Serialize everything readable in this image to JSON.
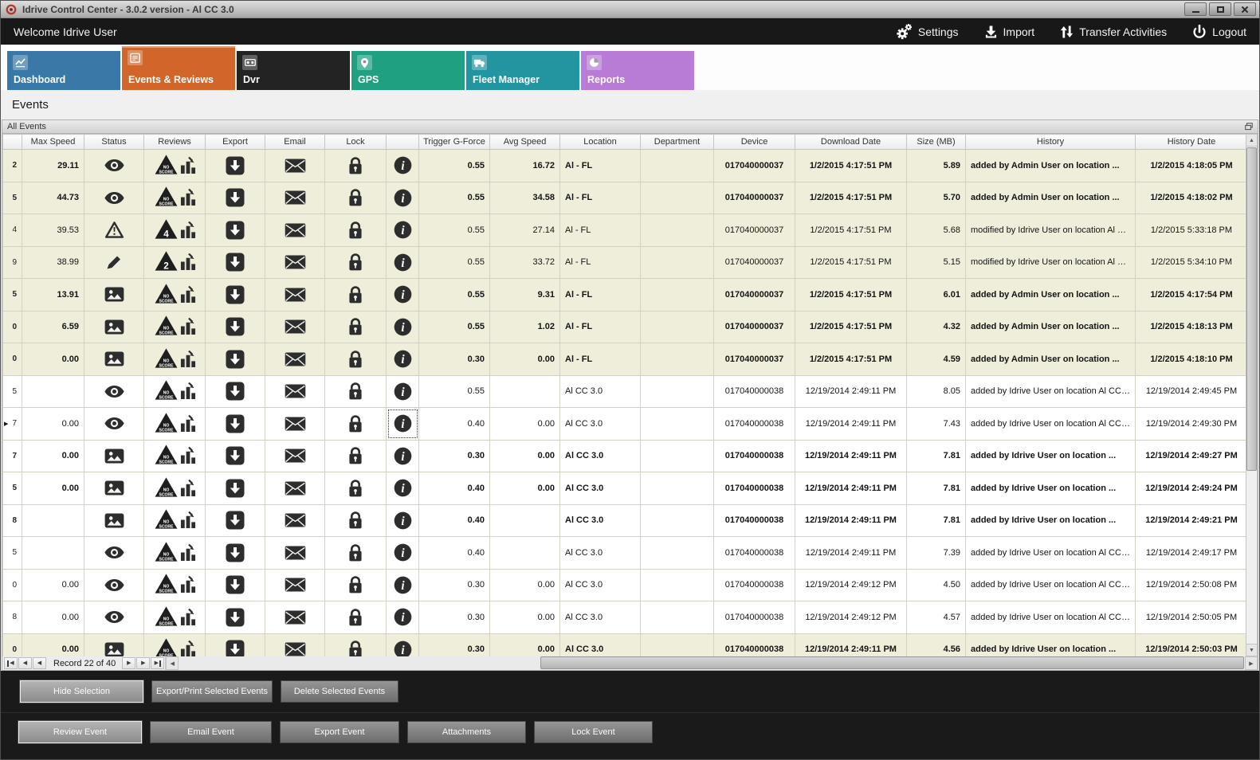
{
  "window": {
    "title": "Idrive Control Center - 3.0.2 version - Al CC 3.0"
  },
  "topbar": {
    "welcome": "Welcome Idrive User",
    "actions": [
      {
        "id": "settings",
        "label": "Settings"
      },
      {
        "id": "import",
        "label": "Import"
      },
      {
        "id": "transfer-activities",
        "label": "Transfer Activities"
      },
      {
        "id": "logout",
        "label": "Logout"
      }
    ]
  },
  "tabs": [
    {
      "label": "Dashboard",
      "color": "#3a78a8",
      "selected": false
    },
    {
      "label": "Events & Reviews",
      "color": "#d2652a",
      "selected": true
    },
    {
      "label": "Dvr",
      "color": "#232323",
      "selected": false
    },
    {
      "label": "GPS",
      "color": "#1fa080",
      "selected": false
    },
    {
      "label": "Fleet Manager",
      "color": "#2295a1",
      "selected": false
    },
    {
      "label": "Reports",
      "color": "#b87cd6",
      "selected": false
    }
  ],
  "page": {
    "heading": "Events",
    "panel_title": "All Events"
  },
  "table": {
    "columns": [
      "",
      "Max Speed",
      "Status",
      "Reviews",
      "Export",
      "Email",
      "Lock",
      "",
      "Trigger G-Force",
      "Avg Speed",
      "Location",
      "Department",
      "Device",
      "Download Date",
      "Size (MB)",
      "History",
      "History Date"
    ],
    "rows": [
      {
        "tail": "2",
        "max": "29.11",
        "status": "eye",
        "review": "NO SCORE",
        "trigger": "0.55",
        "avg": "16.72",
        "location": "Al - FL",
        "department": "",
        "device": "017040000037",
        "download_date": "1/2/2015 4:17:51 PM",
        "size": "5.89",
        "history": "added by Admin User on location ...",
        "history_date": "1/2/2015 4:18:05 PM",
        "bold": true,
        "tone": "beige",
        "selected": false
      },
      {
        "tail": "5",
        "max": "44.73",
        "status": "eye",
        "review": "NO SCORE",
        "trigger": "0.55",
        "avg": "34.58",
        "location": "Al - FL",
        "department": "",
        "device": "017040000037",
        "download_date": "1/2/2015 4:17:51 PM",
        "size": "5.70",
        "history": "added by Admin User on location ...",
        "history_date": "1/2/2015 4:18:02 PM",
        "bold": true,
        "tone": "beige",
        "selected": false
      },
      {
        "tail": "4",
        "max": "39.53",
        "status": "warning",
        "review": "4",
        "trigger": "0.55",
        "avg": "27.14",
        "location": "Al - FL",
        "department": "",
        "device": "017040000037",
        "download_date": "1/2/2015 4:17:51 PM",
        "size": "5.68",
        "history": "modified by Idrive User on location Al C...",
        "history_date": "1/2/2015 5:33:18 PM",
        "bold": false,
        "tone": "beige",
        "selected": false
      },
      {
        "tail": "9",
        "max": "38.99",
        "status": "pencil",
        "review": "2",
        "trigger": "0.55",
        "avg": "33.72",
        "location": "Al - FL",
        "department": "",
        "device": "017040000037",
        "download_date": "1/2/2015 4:17:51 PM",
        "size": "5.15",
        "history": "modified by Idrive User on location Al C...",
        "history_date": "1/2/2015 5:34:10 PM",
        "bold": false,
        "tone": "beige",
        "selected": false
      },
      {
        "tail": "5",
        "max": "13.91",
        "status": "image",
        "review": "NO SCORE",
        "trigger": "0.55",
        "avg": "9.31",
        "location": "Al - FL",
        "department": "",
        "device": "017040000037",
        "download_date": "1/2/2015 4:17:51 PM",
        "size": "6.01",
        "history": "added by Admin User on location ...",
        "history_date": "1/2/2015 4:17:54 PM",
        "bold": true,
        "tone": "beige",
        "selected": false
      },
      {
        "tail": "0",
        "max": "6.59",
        "status": "image",
        "review": "NO SCORE",
        "trigger": "0.55",
        "avg": "1.02",
        "location": "Al - FL",
        "department": "",
        "device": "017040000037",
        "download_date": "1/2/2015 4:17:51 PM",
        "size": "4.32",
        "history": "added by Admin User on location ...",
        "history_date": "1/2/2015 4:18:13 PM",
        "bold": true,
        "tone": "beige",
        "selected": false
      },
      {
        "tail": "0",
        "max": "0.00",
        "status": "image",
        "review": "NO SCORE",
        "trigger": "0.30",
        "avg": "0.00",
        "location": "Al - FL",
        "department": "",
        "device": "017040000037",
        "download_date": "1/2/2015 4:17:51 PM",
        "size": "4.59",
        "history": "added by Admin User on location ...",
        "history_date": "1/2/2015 4:18:10 PM",
        "bold": true,
        "tone": "beige",
        "selected": false
      },
      {
        "tail": "5",
        "max": "",
        "status": "eye",
        "review": "NO SCORE",
        "trigger": "0.55",
        "avg": "",
        "location": "Al CC 3.0",
        "department": "",
        "device": "017040000038",
        "download_date": "12/19/2014 2:49:11 PM",
        "size": "8.05",
        "history": "added by Idrive User on location Al CC ...",
        "history_date": "12/19/2014 2:49:45 PM",
        "bold": false,
        "tone": "white",
        "selected": false
      },
      {
        "tail": "7",
        "max": "0.00",
        "status": "eye",
        "review": "NO SCORE",
        "trigger": "0.40",
        "avg": "0.00",
        "location": "Al CC 3.0",
        "department": "",
        "device": "017040000038",
        "download_date": "12/19/2014 2:49:11 PM",
        "size": "7.43",
        "history": "added by Idrive User on location Al CC ...",
        "history_date": "12/19/2014 2:49:30 PM",
        "bold": false,
        "tone": "white",
        "selected": true
      },
      {
        "tail": "7",
        "max": "0.00",
        "status": "image",
        "review": "NO SCORE",
        "trigger": "0.30",
        "avg": "0.00",
        "location": "Al CC 3.0",
        "department": "",
        "device": "017040000038",
        "download_date": "12/19/2014 2:49:11 PM",
        "size": "7.81",
        "history": "added by Idrive User on location ...",
        "history_date": "12/19/2014 2:49:27 PM",
        "bold": true,
        "tone": "white",
        "selected": false
      },
      {
        "tail": "5",
        "max": "0.00",
        "status": "image",
        "review": "NO SCORE",
        "trigger": "0.40",
        "avg": "0.00",
        "location": "Al CC 3.0",
        "department": "",
        "device": "017040000038",
        "download_date": "12/19/2014 2:49:11 PM",
        "size": "7.81",
        "history": "added by Idrive User on location ...",
        "history_date": "12/19/2014 2:49:24 PM",
        "bold": true,
        "tone": "white",
        "selected": false
      },
      {
        "tail": "8",
        "max": "",
        "status": "image",
        "review": "NO SCORE",
        "trigger": "0.40",
        "avg": "",
        "location": "Al CC 3.0",
        "department": "",
        "device": "017040000038",
        "download_date": "12/19/2014 2:49:11 PM",
        "size": "7.81",
        "history": "added by Idrive User on location ...",
        "history_date": "12/19/2014 2:49:21 PM",
        "bold": true,
        "tone": "white",
        "selected": false
      },
      {
        "tail": "5",
        "max": "",
        "status": "eye",
        "review": "NO SCORE",
        "trigger": "0.40",
        "avg": "",
        "location": "Al CC 3.0",
        "department": "",
        "device": "017040000038",
        "download_date": "12/19/2014 2:49:11 PM",
        "size": "7.39",
        "history": "added by Idrive User on location Al CC ...",
        "history_date": "12/19/2014 2:49:17 PM",
        "bold": false,
        "tone": "white",
        "selected": false
      },
      {
        "tail": "0",
        "max": "0.00",
        "status": "eye",
        "review": "NO SCORE",
        "trigger": "0.30",
        "avg": "0.00",
        "location": "Al CC 3.0",
        "department": "",
        "device": "017040000038",
        "download_date": "12/19/2014 2:49:12 PM",
        "size": "4.50",
        "history": "added by Idrive User on location Al CC ...",
        "history_date": "12/19/2014 2:50:08 PM",
        "bold": false,
        "tone": "white",
        "selected": false
      },
      {
        "tail": "8",
        "max": "0.00",
        "status": "eye",
        "review": "NO SCORE",
        "trigger": "0.30",
        "avg": "0.00",
        "location": "Al CC 3.0",
        "department": "",
        "device": "017040000038",
        "download_date": "12/19/2014 2:49:12 PM",
        "size": "4.57",
        "history": "added by Idrive User on location Al CC ...",
        "history_date": "12/19/2014 2:50:05 PM",
        "bold": false,
        "tone": "white",
        "selected": false
      },
      {
        "tail": "0",
        "max": "0.00",
        "status": "image",
        "review": "NO SCORE",
        "trigger": "0.30",
        "avg": "0.00",
        "location": "Al CC 3.0",
        "department": "",
        "device": "017040000038",
        "download_date": "12/19/2014 2:49:11 PM",
        "size": "4.56",
        "history": "added by Idrive User on location ...",
        "history_date": "12/19/2014 2:50:03 PM",
        "bold": true,
        "tone": "beige",
        "selected": false
      }
    ]
  },
  "navigator": {
    "record_label": "Record 22 of 40"
  },
  "icons": {
    "scroll_up": "▲",
    "scroll_down": "▼",
    "scroll_left": "◀",
    "scroll_right": "▶",
    "nav_prev": "◀",
    "nav_next": "▶",
    "current_row_marker": "▶"
  },
  "footer": {
    "selection_buttons": [
      "Hide Selection",
      "Export/Print Selected Events",
      "Delete Selected  Events"
    ],
    "event_buttons": [
      "Review Event",
      "Email Event",
      "Export Event",
      "Attachments",
      "Lock Event"
    ]
  }
}
